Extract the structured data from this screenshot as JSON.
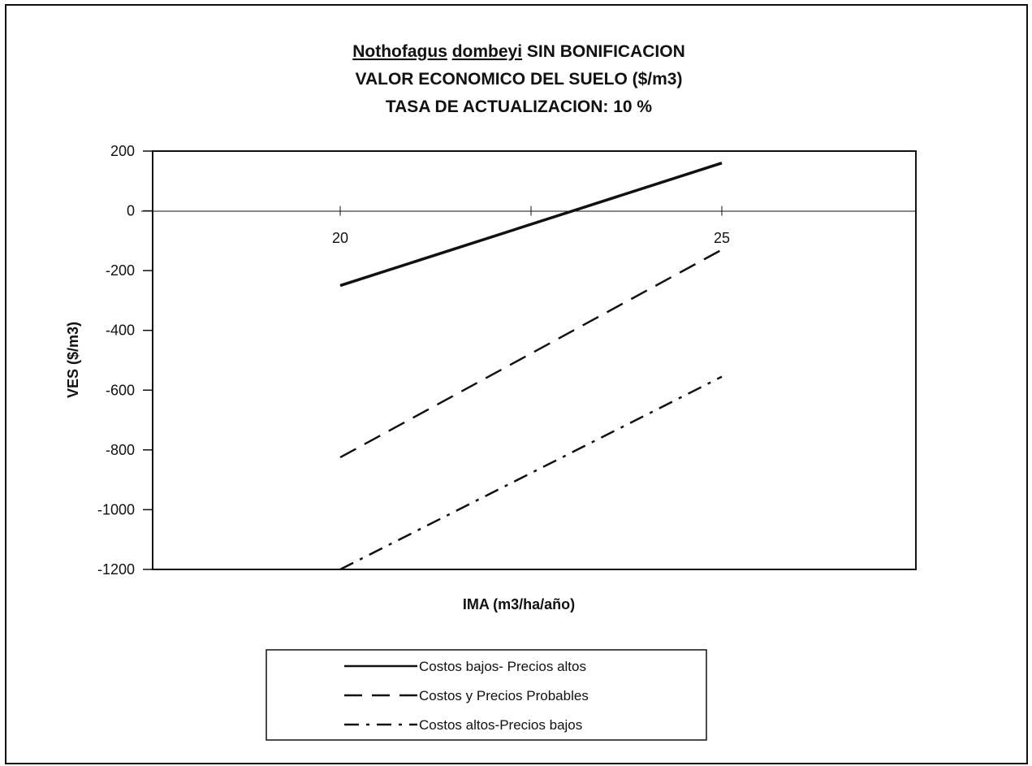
{
  "title": {
    "species_genus": "Nothofagus",
    "species_epithet": "dombeyi",
    "title_suffix": "SIN BONIFICACION",
    "line2": "VALOR ECONOMICO DEL SUELO ($/m3)",
    "line3": "TASA DE ACTUALIZACION: 10 %"
  },
  "chart_data": {
    "type": "line",
    "xlabel": "IMA (m3/ha/año)",
    "ylabel": "VES ($/m3)",
    "x": [
      20,
      25
    ],
    "x_tick_labels": [
      "20",
      "25"
    ],
    "ylim": [
      -1200,
      200
    ],
    "y_ticks": [
      200,
      0,
      -200,
      -400,
      -600,
      -800,
      -1000,
      -1200
    ],
    "y_tick_labels": [
      "200",
      "0",
      "-200",
      "-400",
      "-600",
      "-800",
      "-1000",
      "-1200"
    ],
    "grid": false,
    "legend_position": "bottom",
    "series": [
      {
        "name": "Costos bajos- Precios altos",
        "values": [
          -250,
          160
        ],
        "style": "solid",
        "color": "#111111"
      },
      {
        "name": "Costos y Precios Probables",
        "values": [
          -825,
          -130
        ],
        "style": "dashed",
        "color": "#111111"
      },
      {
        "name": "Costos altos-Precios bajos",
        "values": [
          -1200,
          -555
        ],
        "style": "dashdot",
        "color": "#111111"
      }
    ]
  }
}
